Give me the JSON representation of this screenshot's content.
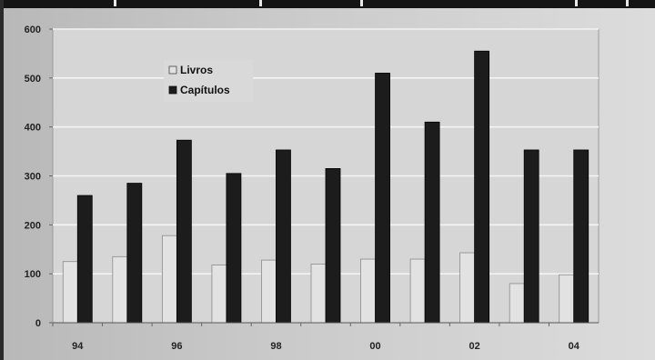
{
  "chart_data": {
    "type": "bar",
    "title": "",
    "xlabel": "",
    "ylabel": "",
    "categories": [
      "94",
      "95",
      "96",
      "97",
      "98",
      "99",
      "00",
      "01",
      "02",
      "03",
      "04"
    ],
    "x_tick_labels": [
      "94",
      "",
      "96",
      "",
      "98",
      "",
      "00",
      "",
      "02",
      "",
      "04"
    ],
    "series": [
      {
        "name": "Livros",
        "color": "#e2e2e2",
        "values": [
          125,
          135,
          178,
          118,
          128,
          120,
          130,
          130,
          143,
          80,
          98
        ]
      },
      {
        "name": "Capítulos",
        "color": "#1c1c1c",
        "values": [
          260,
          285,
          373,
          305,
          353,
          315,
          510,
          410,
          555,
          353,
          353
        ]
      }
    ],
    "ylim": [
      0,
      600
    ],
    "y_ticks": [
      "0",
      "100",
      "200",
      "300",
      "400",
      "500",
      "600"
    ],
    "grid": true,
    "legend_position": "top-left inside plot"
  }
}
